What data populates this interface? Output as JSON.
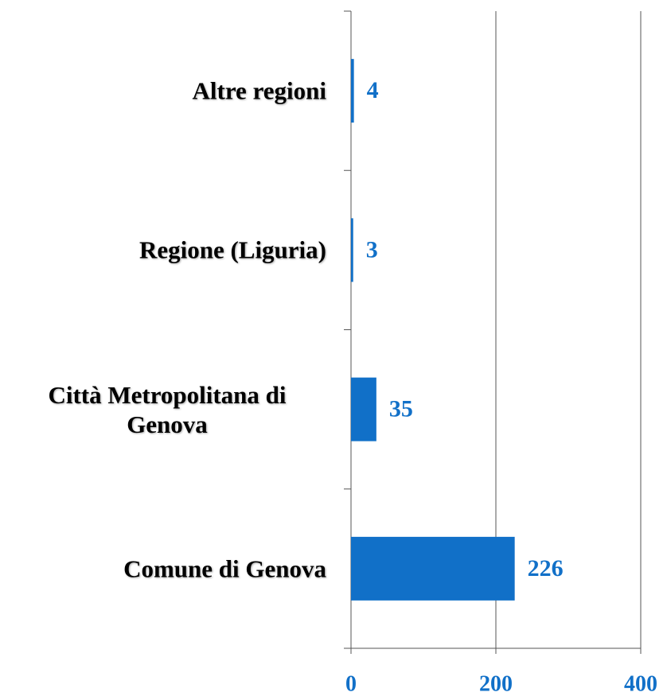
{
  "chart_data": {
    "type": "bar",
    "orientation": "horizontal",
    "categories": [
      "Altre regioni",
      "Regione (Liguria)",
      "Città Metropolitana di Genova",
      "Comune di Genova"
    ],
    "values": [
      4,
      3,
      35,
      226
    ],
    "color": "#1170c8",
    "xlim": [
      0,
      400
    ],
    "xticks": [
      0,
      200,
      400
    ],
    "grid": true
  }
}
